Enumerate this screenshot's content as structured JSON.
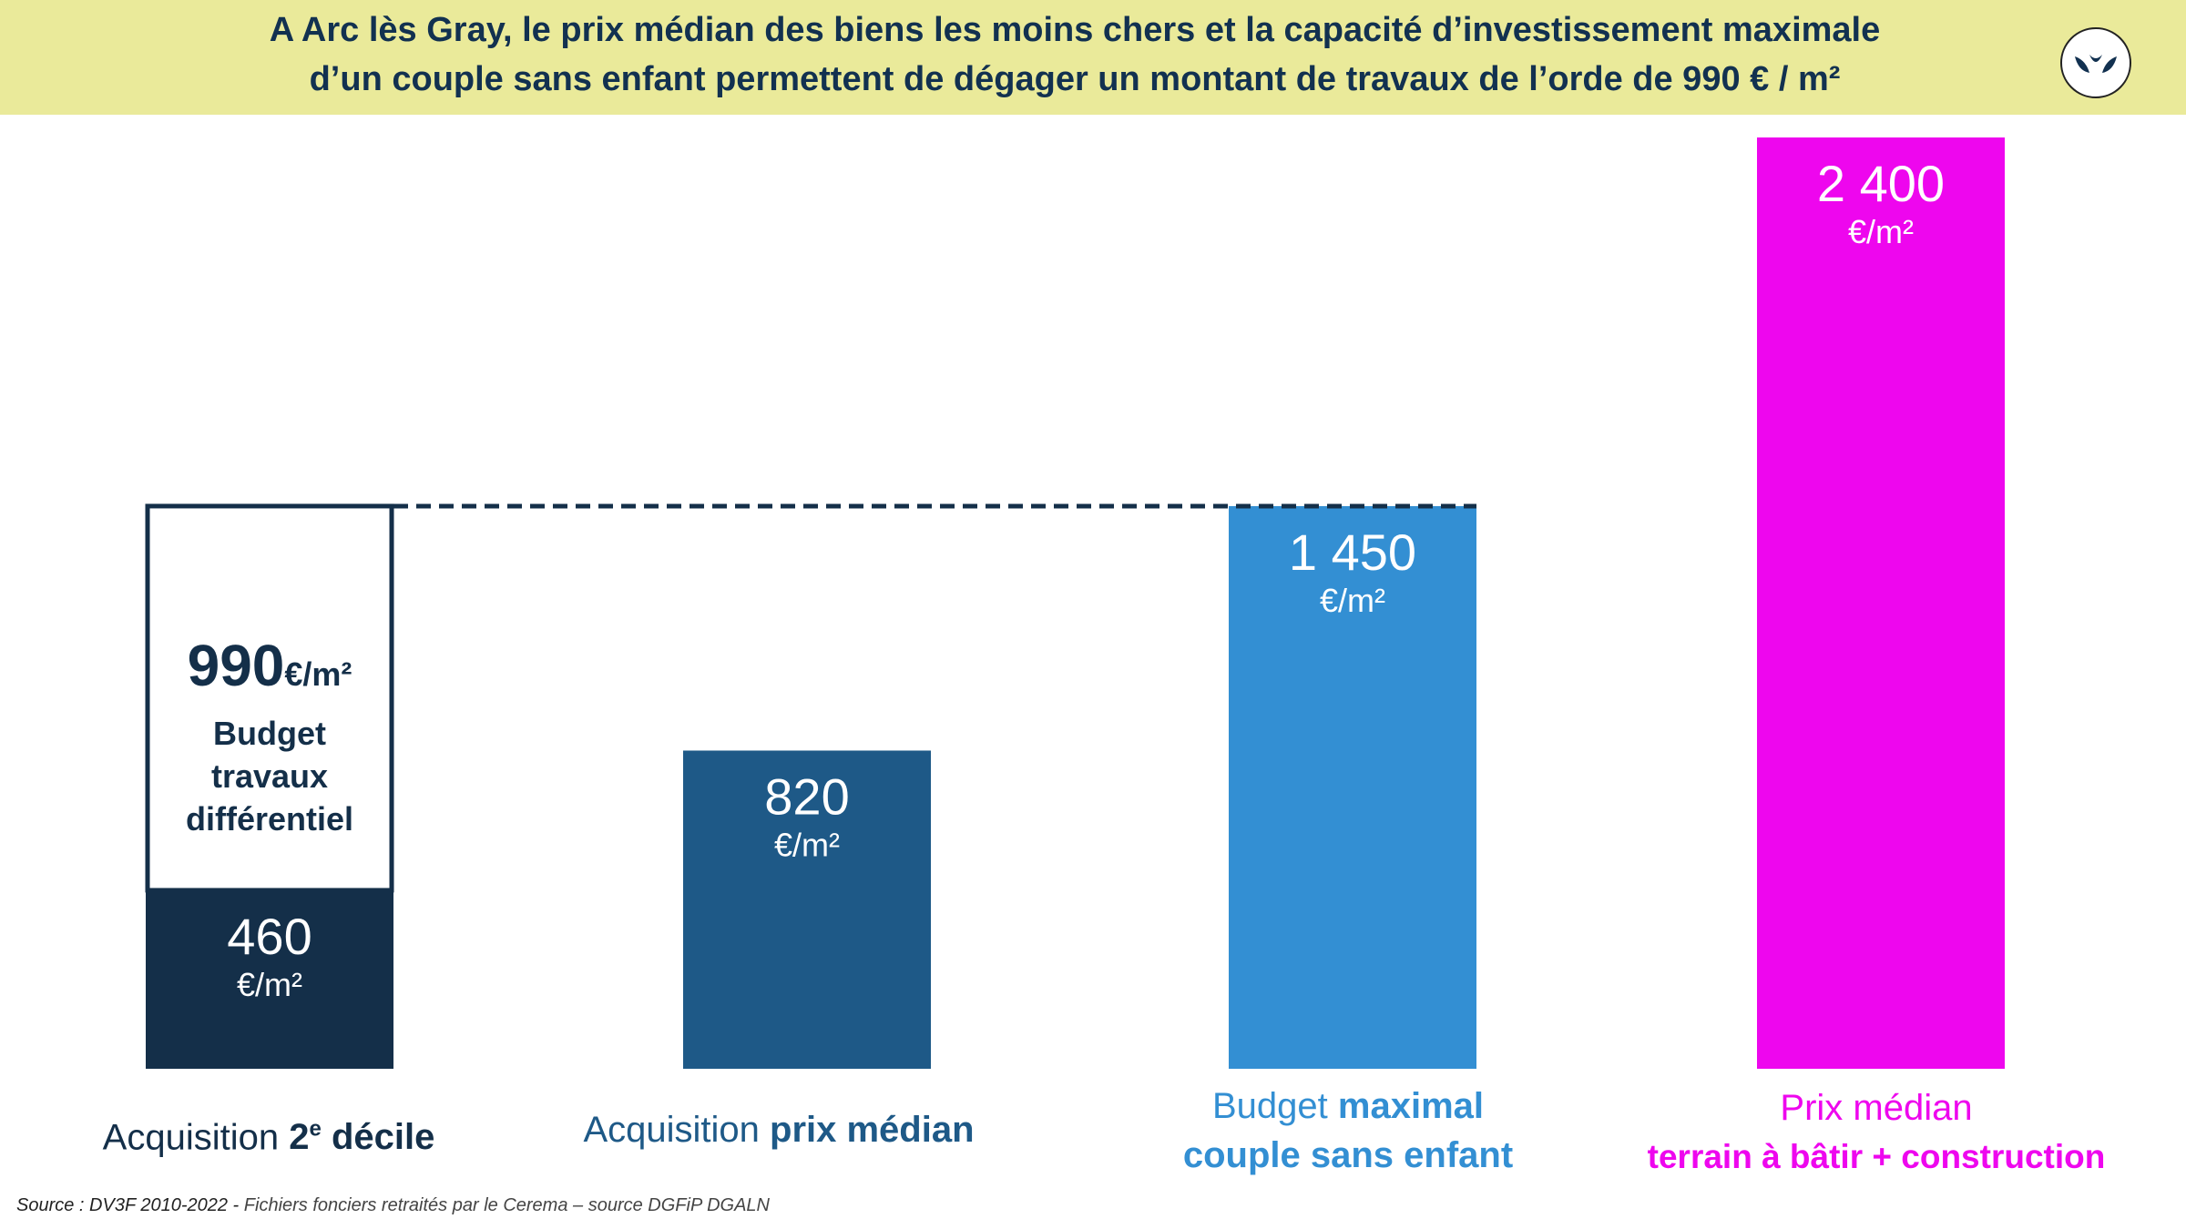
{
  "header": {
    "title_line1": "A Arc lès Gray, le prix médian des biens les moins chers et la capacité d’investissement maximale",
    "title_line2": "d’un couple sans enfant permettent de dégager un montant de travaux de l’orde de 990 € / m²"
  },
  "logo": {
    "icon": "leaves-logo-icon"
  },
  "chart_data": {
    "type": "bar",
    "unit": "€/m²",
    "categories": [
      {
        "normal": "Acquisition ",
        "bold": "2e décile",
        "bold_base": "2",
        "bold_sup": "e",
        "bold_rest": " décile"
      },
      {
        "normal": "Acquisition ",
        "bold": "prix médian"
      },
      {
        "line1_normal": "Budget ",
        "line1_bold": "maximal",
        "line2": "couple sans enfant"
      },
      {
        "line1": "Prix médian",
        "line2": "terrain à bâtir + construction"
      }
    ],
    "bars": [
      {
        "value": 460,
        "label": "460",
        "unit": "€/m²",
        "color": "#142f49"
      },
      {
        "value": 820,
        "label": "820",
        "unit": "€/m²",
        "color": "#1e5987"
      },
      {
        "value": 1450,
        "label": "1 450",
        "unit": "€/m²",
        "color": "#338fd3"
      },
      {
        "value": 2400,
        "label": "2 400",
        "unit": "€/m²",
        "color": "#ee06ee"
      }
    ],
    "stacked_segment": {
      "on_bar": 0,
      "value": 990,
      "value_label": "990",
      "unit": "€/m²",
      "text": [
        "Budget",
        "travaux",
        "différentiel"
      ],
      "fill": "#ffffff",
      "stroke": "#142f49"
    },
    "reference_line": {
      "value": 1450,
      "style": "dashed",
      "color": "#142f49"
    },
    "ylim": [
      0,
      2400
    ]
  },
  "source": {
    "lead": "Source : DV3F 2010-2022 - ",
    "rest": "Fichiers fonciers retraités par le Cerema – source DGFiP DGALN"
  }
}
